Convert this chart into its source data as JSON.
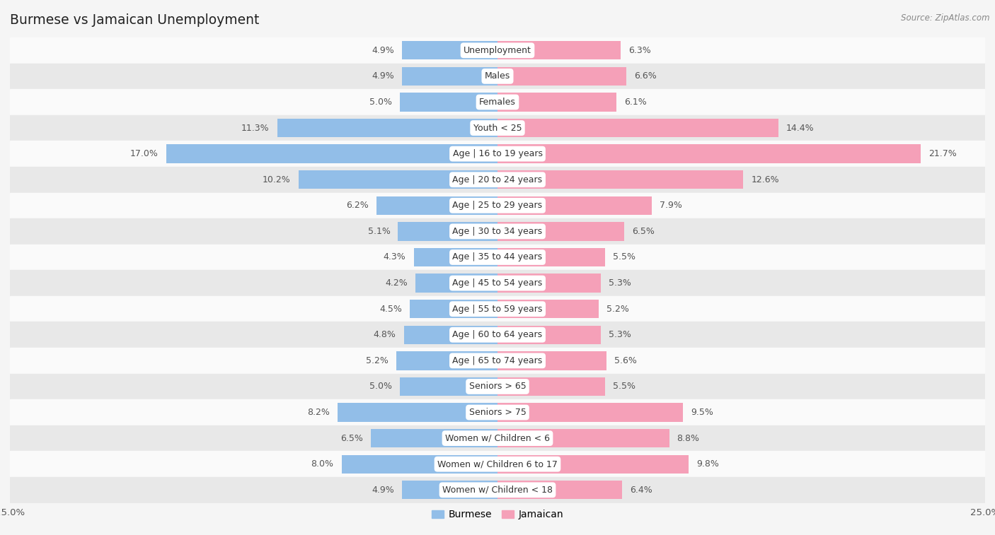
{
  "title": "Burmese vs Jamaican Unemployment",
  "source": "Source: ZipAtlas.com",
  "categories": [
    "Unemployment",
    "Males",
    "Females",
    "Youth < 25",
    "Age | 16 to 19 years",
    "Age | 20 to 24 years",
    "Age | 25 to 29 years",
    "Age | 30 to 34 years",
    "Age | 35 to 44 years",
    "Age | 45 to 54 years",
    "Age | 55 to 59 years",
    "Age | 60 to 64 years",
    "Age | 65 to 74 years",
    "Seniors > 65",
    "Seniors > 75",
    "Women w/ Children < 6",
    "Women w/ Children 6 to 17",
    "Women w/ Children < 18"
  ],
  "burmese": [
    4.9,
    4.9,
    5.0,
    11.3,
    17.0,
    10.2,
    6.2,
    5.1,
    4.3,
    4.2,
    4.5,
    4.8,
    5.2,
    5.0,
    8.2,
    6.5,
    8.0,
    4.9
  ],
  "jamaican": [
    6.3,
    6.6,
    6.1,
    14.4,
    21.7,
    12.6,
    7.9,
    6.5,
    5.5,
    5.3,
    5.2,
    5.3,
    5.6,
    5.5,
    9.5,
    8.8,
    9.8,
    6.4
  ],
  "burmese_color": "#92bee8",
  "jamaican_color": "#f5a0b8",
  "label_color": "#555555",
  "bar_height": 0.72,
  "xlim": 25.0,
  "bg_color": "#f0f0f0",
  "row_bg_white": "#fafafa",
  "row_bg_gray": "#e8e8e8"
}
